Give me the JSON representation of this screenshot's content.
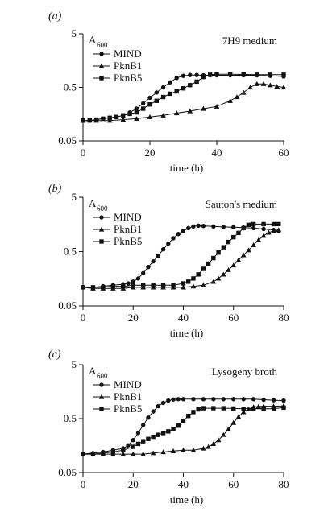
{
  "chart_data": [
    {
      "type": "line",
      "panel_label": "(a)",
      "medium_label": "7H9 medium",
      "ylabel": "A",
      "ylabel_sub": "600",
      "xlabel": "time (h)",
      "xlim": [
        0,
        60
      ],
      "ylim": [
        0.05,
        5
      ],
      "y_scale": "log",
      "x_ticks": [
        "0",
        "20",
        "40",
        "60"
      ],
      "y_ticks": [
        "5",
        "0.5",
        "0.05"
      ],
      "legend": [
        "MIND",
        "PknB1",
        "PknB5"
      ],
      "legend_position": "upper-left",
      "series": [
        {
          "name": "MIND",
          "marker": "circle",
          "x": [
            0,
            2,
            4,
            6,
            8,
            10,
            12,
            14,
            16,
            18,
            20,
            22,
            24,
            26,
            28,
            30,
            32,
            34,
            36,
            38,
            40,
            44,
            48,
            52,
            56,
            60
          ],
          "y": [
            0.12,
            0.12,
            0.125,
            0.13,
            0.135,
            0.14,
            0.15,
            0.17,
            0.2,
            0.25,
            0.32,
            0.4,
            0.5,
            0.62,
            0.75,
            0.82,
            0.85,
            0.85,
            0.84,
            0.84,
            0.84,
            0.84,
            0.84,
            0.84,
            0.82,
            0.8
          ]
        },
        {
          "name": "PknB1",
          "marker": "triangle",
          "x": [
            0,
            4,
            8,
            12,
            16,
            20,
            24,
            28,
            32,
            36,
            40,
            44,
            46,
            48,
            50,
            52,
            54,
            56,
            58,
            60
          ],
          "y": [
            0.12,
            0.12,
            0.12,
            0.125,
            0.13,
            0.14,
            0.15,
            0.165,
            0.18,
            0.2,
            0.22,
            0.28,
            0.33,
            0.4,
            0.5,
            0.58,
            0.58,
            0.55,
            0.52,
            0.5
          ]
        },
        {
          "name": "PknB5",
          "marker": "square",
          "x": [
            0,
            2,
            4,
            6,
            8,
            10,
            12,
            14,
            16,
            18,
            20,
            22,
            24,
            26,
            28,
            30,
            32,
            34,
            36,
            38,
            40,
            44,
            48,
            52,
            56,
            60
          ],
          "y": [
            0.12,
            0.12,
            0.125,
            0.13,
            0.135,
            0.14,
            0.15,
            0.16,
            0.17,
            0.2,
            0.24,
            0.28,
            0.33,
            0.38,
            0.42,
            0.48,
            0.55,
            0.64,
            0.78,
            0.86,
            0.88,
            0.88,
            0.87,
            0.86,
            0.86,
            0.86
          ]
        }
      ]
    },
    {
      "type": "line",
      "panel_label": "(b)",
      "medium_label": "Sauton's medium",
      "ylabel": "A",
      "ylabel_sub": "600",
      "xlabel": "time (h)",
      "xlim": [
        0,
        80
      ],
      "ylim": [
        0.05,
        5
      ],
      "y_scale": "log",
      "x_ticks": [
        "0",
        "20",
        "40",
        "60",
        "80"
      ],
      "y_ticks": [
        "5",
        "0.5",
        "0.05"
      ],
      "legend": [
        "MIND",
        "PknB1",
        "PknB5"
      ],
      "legend_position": "upper-left",
      "series": [
        {
          "name": "MIND",
          "marker": "circle",
          "x": [
            0,
            4,
            8,
            12,
            16,
            18,
            20,
            22,
            24,
            26,
            28,
            30,
            32,
            34,
            36,
            38,
            40,
            42,
            44,
            46,
            48,
            52,
            56,
            60,
            64,
            68,
            72,
            76,
            78
          ],
          "y": [
            0.11,
            0.11,
            0.115,
            0.12,
            0.125,
            0.13,
            0.14,
            0.16,
            0.2,
            0.26,
            0.33,
            0.42,
            0.55,
            0.7,
            0.88,
            1.05,
            1.2,
            1.35,
            1.45,
            1.5,
            1.48,
            1.45,
            1.42,
            1.4,
            1.38,
            1.35,
            1.3,
            1.25,
            1.2
          ]
        },
        {
          "name": "PknB1",
          "marker": "triangle",
          "x": [
            0,
            4,
            8,
            12,
            16,
            20,
            24,
            28,
            32,
            36,
            40,
            44,
            48,
            52,
            54,
            56,
            58,
            60,
            62,
            64,
            66,
            68,
            70,
            72,
            74,
            76,
            78
          ],
          "y": [
            0.11,
            0.105,
            0.105,
            0.105,
            0.105,
            0.11,
            0.11,
            0.11,
            0.11,
            0.11,
            0.11,
            0.115,
            0.12,
            0.14,
            0.16,
            0.19,
            0.23,
            0.28,
            0.35,
            0.43,
            0.53,
            0.66,
            0.82,
            0.98,
            1.12,
            1.2,
            1.25
          ]
        },
        {
          "name": "PknB5",
          "marker": "square",
          "x": [
            0,
            4,
            8,
            12,
            16,
            20,
            24,
            28,
            32,
            36,
            40,
            42,
            44,
            46,
            48,
            50,
            52,
            54,
            56,
            58,
            60,
            62,
            64,
            66,
            68,
            72,
            76,
            78
          ],
          "y": [
            0.11,
            0.11,
            0.11,
            0.115,
            0.115,
            0.12,
            0.12,
            0.12,
            0.12,
            0.12,
            0.13,
            0.14,
            0.16,
            0.19,
            0.24,
            0.3,
            0.38,
            0.48,
            0.6,
            0.75,
            0.92,
            1.1,
            1.35,
            1.55,
            1.6,
            1.6,
            1.6,
            1.6
          ]
        }
      ]
    },
    {
      "type": "line",
      "panel_label": "(c)",
      "medium_label": "Lysogeny broth",
      "ylabel": "A",
      "ylabel_sub": "600",
      "xlabel": "time (h)",
      "xlim": [
        0,
        80
      ],
      "ylim": [
        0.05,
        5
      ],
      "y_scale": "log",
      "x_ticks": [
        "0",
        "20",
        "40",
        "60",
        "80"
      ],
      "y_ticks": [
        "5",
        "0.5",
        "0.05"
      ],
      "legend": [
        "MIND",
        "PknB1",
        "PknB5"
      ],
      "legend_position": "upper-left",
      "series": [
        {
          "name": "MIND",
          "marker": "circle",
          "x": [
            0,
            4,
            8,
            12,
            16,
            18,
            20,
            22,
            24,
            26,
            28,
            30,
            32,
            34,
            36,
            38,
            40,
            44,
            48,
            52,
            56,
            60,
            64,
            68,
            72,
            76,
            80
          ],
          "y": [
            0.11,
            0.115,
            0.12,
            0.13,
            0.14,
            0.16,
            0.2,
            0.27,
            0.38,
            0.52,
            0.68,
            0.85,
            0.98,
            1.08,
            1.13,
            1.15,
            1.15,
            1.15,
            1.15,
            1.15,
            1.15,
            1.15,
            1.15,
            1.15,
            1.12,
            1.1,
            1.08
          ]
        },
        {
          "name": "PknB1",
          "marker": "triangle",
          "x": [
            0,
            4,
            8,
            12,
            16,
            20,
            24,
            28,
            32,
            36,
            40,
            44,
            48,
            50,
            52,
            54,
            56,
            58,
            60,
            62,
            64,
            66,
            68,
            70,
            72,
            76,
            80
          ],
          "y": [
            0.11,
            0.11,
            0.11,
            0.11,
            0.11,
            0.11,
            0.11,
            0.115,
            0.12,
            0.125,
            0.13,
            0.13,
            0.14,
            0.15,
            0.17,
            0.2,
            0.25,
            0.32,
            0.42,
            0.54,
            0.66,
            0.76,
            0.82,
            0.84,
            0.85,
            0.85,
            0.86
          ]
        },
        {
          "name": "PknB5",
          "marker": "square",
          "x": [
            0,
            4,
            8,
            12,
            16,
            20,
            22,
            24,
            26,
            28,
            30,
            32,
            34,
            36,
            38,
            40,
            42,
            44,
            46,
            48,
            52,
            56,
            60,
            64,
            68,
            72,
            76,
            80
          ],
          "y": [
            0.11,
            0.11,
            0.115,
            0.12,
            0.13,
            0.15,
            0.17,
            0.19,
            0.21,
            0.23,
            0.25,
            0.27,
            0.29,
            0.32,
            0.37,
            0.45,
            0.56,
            0.66,
            0.74,
            0.78,
            0.78,
            0.78,
            0.77,
            0.76,
            0.76,
            0.76,
            0.76,
            0.8
          ]
        }
      ]
    }
  ]
}
